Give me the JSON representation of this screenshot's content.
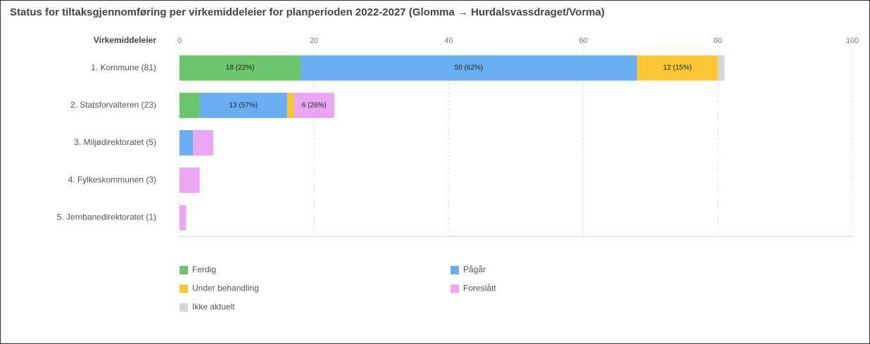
{
  "chart_data": {
    "type": "stacked_barh",
    "title": "Status for tiltaksgjennomføring per virkemiddeleier for planperioden 2022-2027 (Glomma → Hurdalsvassdraget/Vorma)",
    "y_label": "Virkemiddeleier",
    "categories": [
      "1. Kommune (81)",
      "2. Statsforvalteren (23)",
      "3. Miljødirektoratet (5)",
      "4. Fylkeskommunen (3)",
      "5. Jernbanedirektoratet (1)"
    ],
    "series": [
      {
        "name": "Ferdig",
        "color": "#6cc46c",
        "values": [
          18,
          3,
          0,
          0,
          0
        ],
        "value_labels": [
          "18 (22%)",
          null,
          null,
          null,
          null
        ]
      },
      {
        "name": "Pågår",
        "color": "#6aaef2",
        "values": [
          50,
          13,
          2,
          0,
          0
        ],
        "value_labels": [
          "50 (62%)",
          "13 (57%)",
          null,
          null,
          null
        ]
      },
      {
        "name": "Under behandling",
        "color": "#fcc535",
        "values": [
          12,
          1,
          0,
          0,
          0
        ],
        "value_labels": [
          "12 (15%)",
          null,
          null,
          null,
          null
        ]
      },
      {
        "name": "Foreslått",
        "color": "#eaa6f2",
        "values": [
          0,
          6,
          3,
          3,
          1
        ],
        "value_labels": [
          null,
          "6 (26%)",
          null,
          null,
          null
        ]
      },
      {
        "name": "Ikke aktuelt",
        "color": "#d6d6d6",
        "values": [
          1,
          0,
          0,
          0,
          0
        ]
      }
    ],
    "xlim": [
      0,
      100
    ],
    "xticks": [
      0,
      20,
      40,
      60,
      80,
      100
    ],
    "grid": true
  }
}
